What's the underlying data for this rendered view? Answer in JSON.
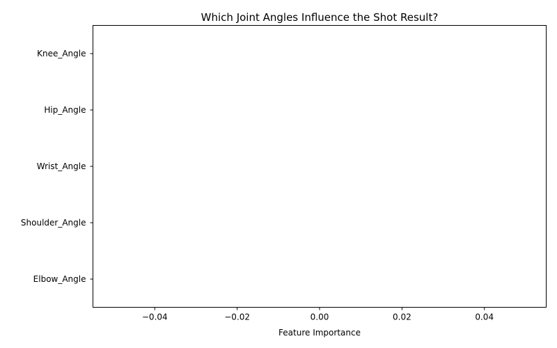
{
  "chart_data": {
    "type": "bar",
    "orientation": "horizontal",
    "title": "Which Joint Angles Influence the Shot Result?",
    "xlabel": "Feature Importance",
    "ylabel": "",
    "categories": [
      "Elbow_Angle",
      "Shoulder_Angle",
      "Wrist_Angle",
      "Hip_Angle",
      "Knee_Angle"
    ],
    "values": [
      0,
      0,
      0,
      0,
      0
    ],
    "xlim": [
      -0.055,
      0.055
    ],
    "xticks": [
      -0.04,
      -0.02,
      0.0,
      0.02,
      0.04
    ],
    "xtick_labels": [
      "−0.04",
      "−0.02",
      "0.00",
      "0.02",
      "0.04"
    ],
    "grid": false,
    "bar_color": "#1f77b4"
  }
}
